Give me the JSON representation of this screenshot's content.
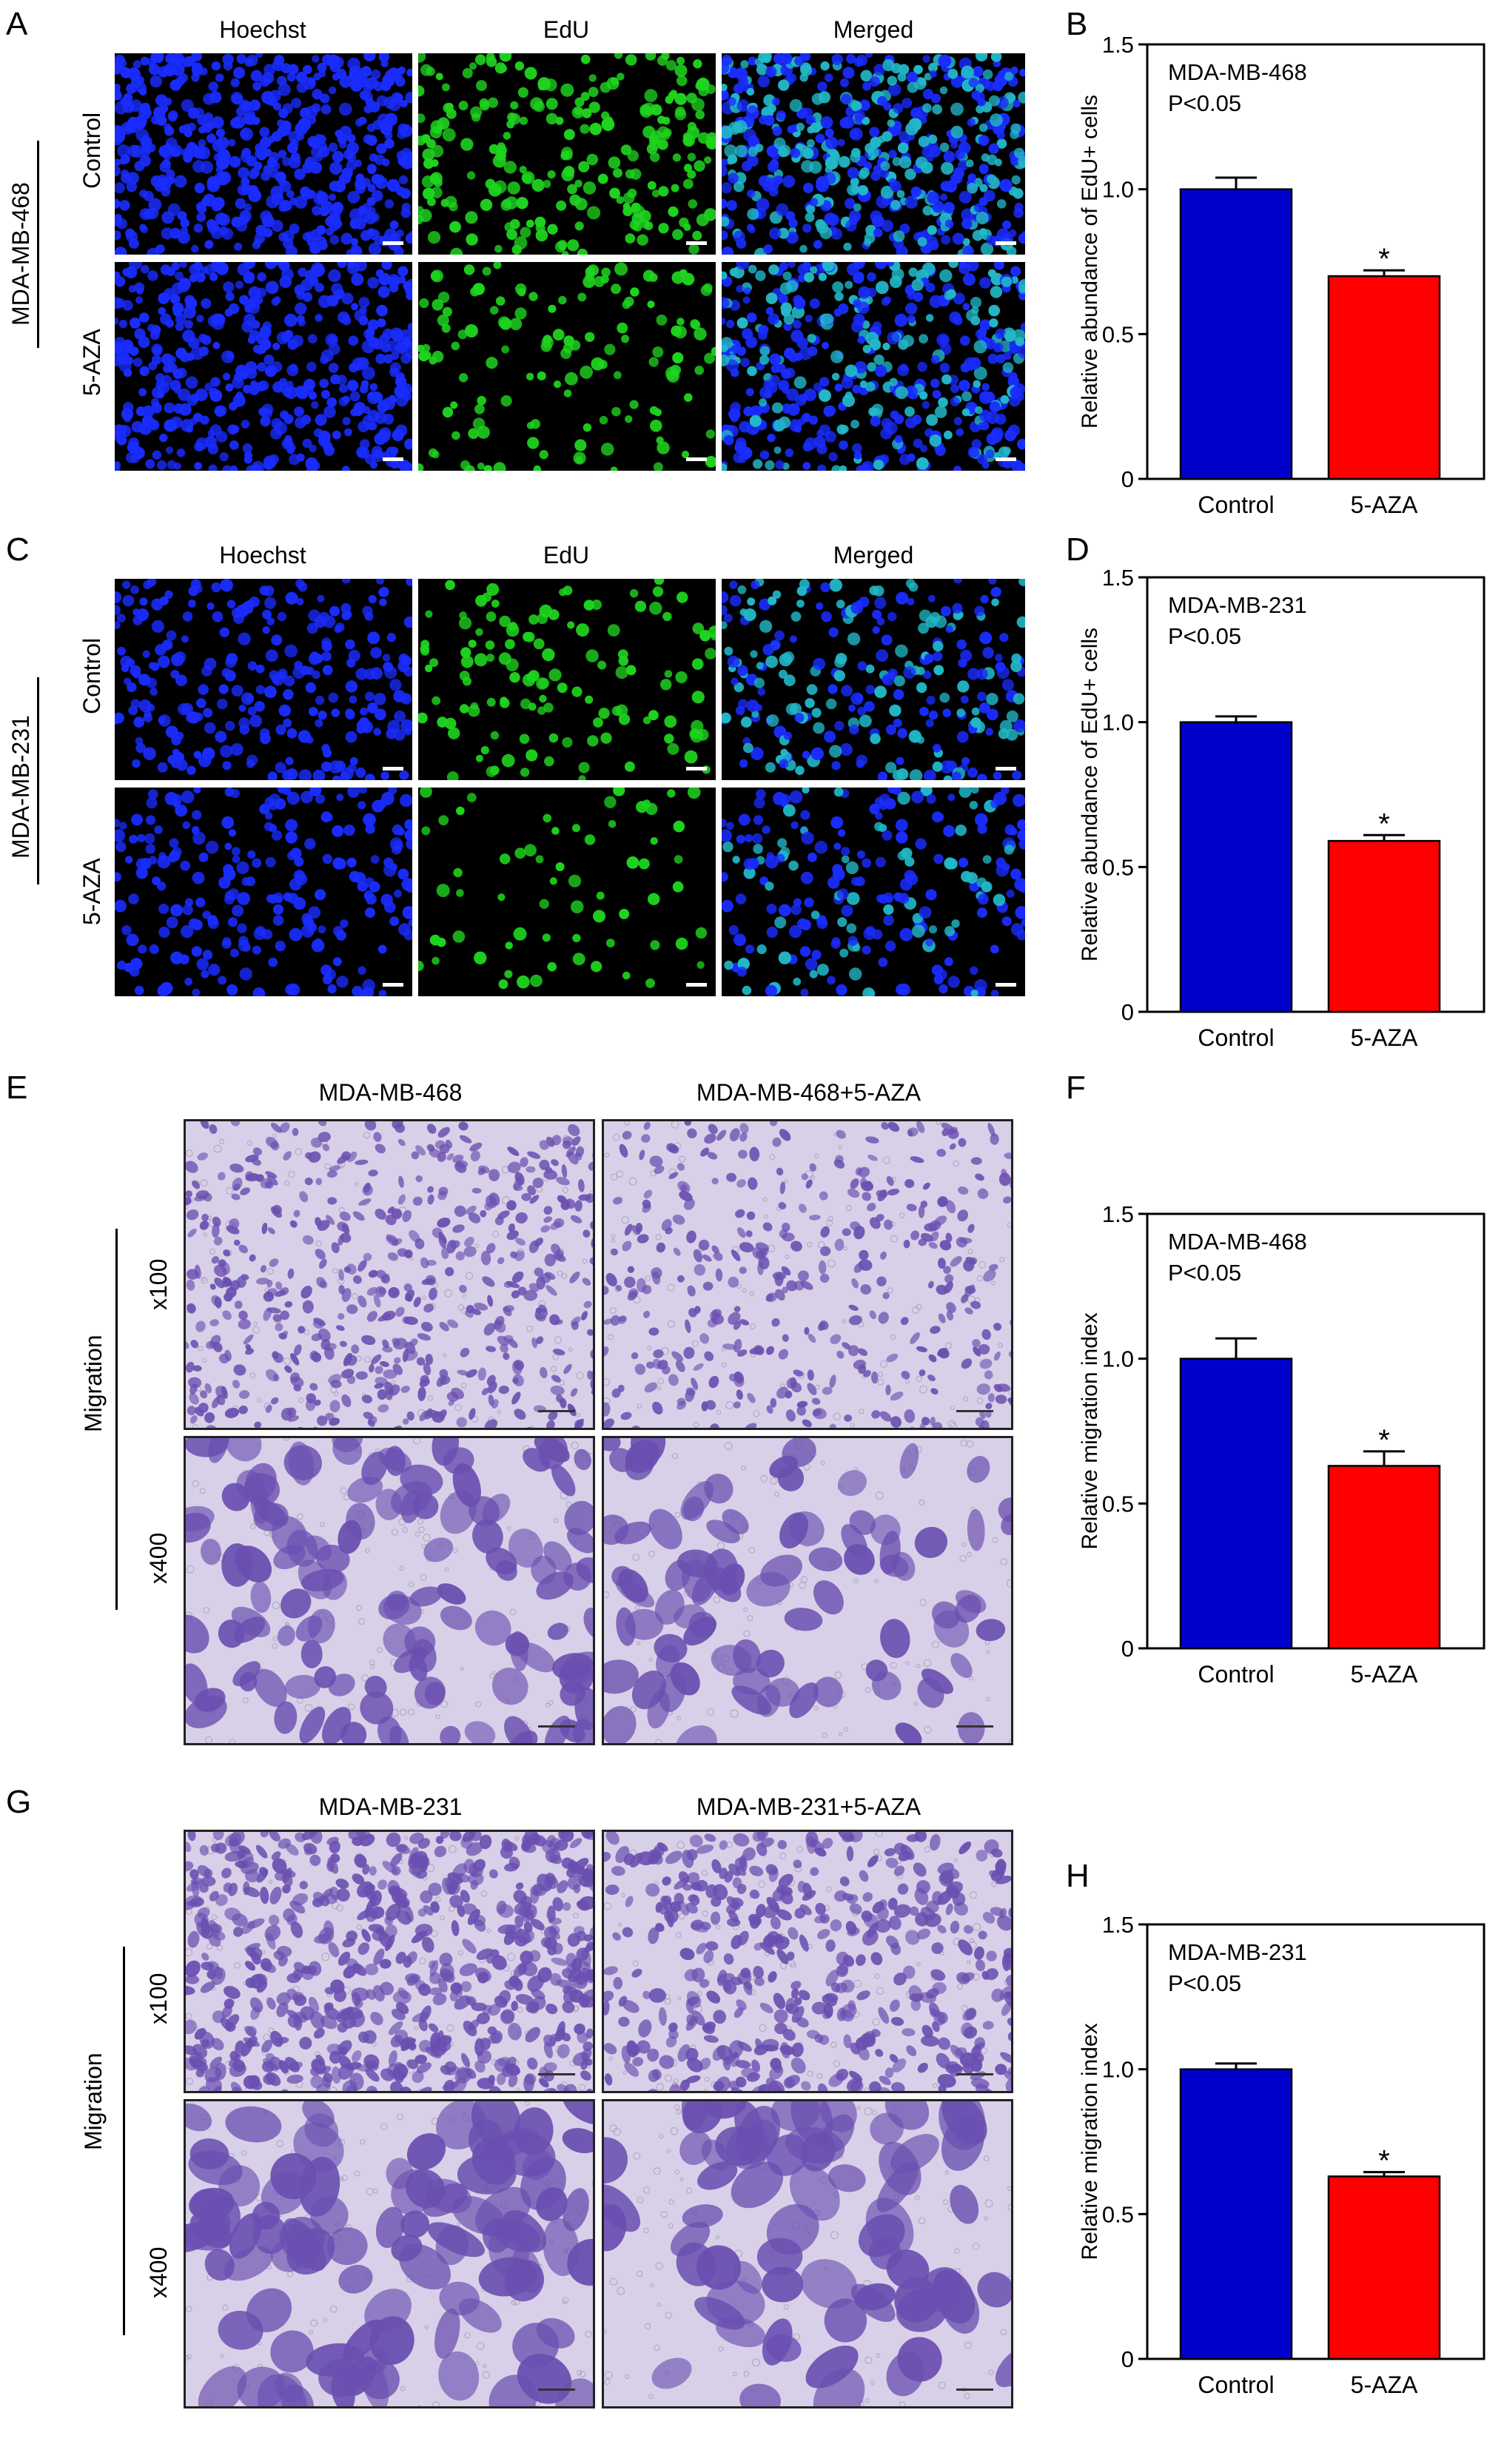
{
  "panels": {
    "A": {
      "label": "A",
      "columns": [
        "Hoechst",
        "EdU",
        "Merged"
      ],
      "cell_line": "MDA-MB-468",
      "rows": [
        "Control",
        "5-AZA"
      ]
    },
    "C": {
      "label": "C",
      "columns": [
        "Hoechst",
        "EdU",
        "Merged"
      ],
      "cell_line": "MDA-MB-231",
      "rows": [
        "Control",
        "5-AZA"
      ]
    },
    "E": {
      "label": "E",
      "columns": [
        "MDA-MB-468",
        "MDA-MB-468+5-AZA"
      ],
      "side_label": "Migration",
      "rows": [
        "x100",
        "x400"
      ]
    },
    "G": {
      "label": "G",
      "columns": [
        "MDA-MB-231",
        "MDA-MB-231+5-AZA"
      ],
      "side_label": "Migration",
      "rows": [
        "x100",
        "x400"
      ]
    }
  },
  "colors": {
    "control": "#0000cc",
    "treated": "#ff0000",
    "hoechst": "#1a2cff",
    "edu": "#1fd41f",
    "merged": "#22b8c8",
    "stain": "#6a4fb0"
  },
  "chart_data": [
    {
      "panel": "B",
      "type": "bar",
      "categories": [
        "Control",
        "5-AZA"
      ],
      "values": [
        1.0,
        0.7
      ],
      "errors": [
        0.04,
        0.02
      ],
      "significance": [
        "",
        "*"
      ],
      "annotation": [
        "MDA-MB-468",
        "P<0.05"
      ],
      "ylabel": "Relative abundance of EdU+ cells",
      "ylim": [
        0,
        1.5
      ],
      "yticks": [
        "0",
        "0.5",
        "1.0",
        "1.5"
      ]
    },
    {
      "panel": "D",
      "type": "bar",
      "categories": [
        "Control",
        "5-AZA"
      ],
      "values": [
        1.0,
        0.59
      ],
      "errors": [
        0.02,
        0.02
      ],
      "significance": [
        "",
        "*"
      ],
      "annotation": [
        "MDA-MB-231",
        "P<0.05"
      ],
      "ylabel": "Relative abundance of EdU+ cells",
      "ylim": [
        0,
        1.5
      ],
      "yticks": [
        "0",
        "0.5",
        "1.0",
        "1.5"
      ]
    },
    {
      "panel": "F",
      "type": "bar",
      "categories": [
        "Control",
        "5-AZA"
      ],
      "values": [
        1.0,
        0.63
      ],
      "errors": [
        0.07,
        0.05
      ],
      "significance": [
        "",
        "*"
      ],
      "annotation": [
        "MDA-MB-468",
        "P<0.05"
      ],
      "ylabel": "Relative migration index",
      "ylim": [
        0,
        1.5
      ],
      "yticks": [
        "0",
        "0.5",
        "1.0",
        "1.5"
      ]
    },
    {
      "panel": "H",
      "type": "bar",
      "categories": [
        "Control",
        "5-AZA"
      ],
      "values": [
        1.0,
        0.63
      ],
      "errors": [
        0.02,
        0.015
      ],
      "significance": [
        "",
        "*"
      ],
      "annotation": [
        "MDA-MB-231",
        "P<0.05"
      ],
      "ylabel": "Relative migration index",
      "ylim": [
        0,
        1.5
      ],
      "yticks": [
        "0",
        "0.5",
        "1.0",
        "1.5"
      ]
    }
  ]
}
